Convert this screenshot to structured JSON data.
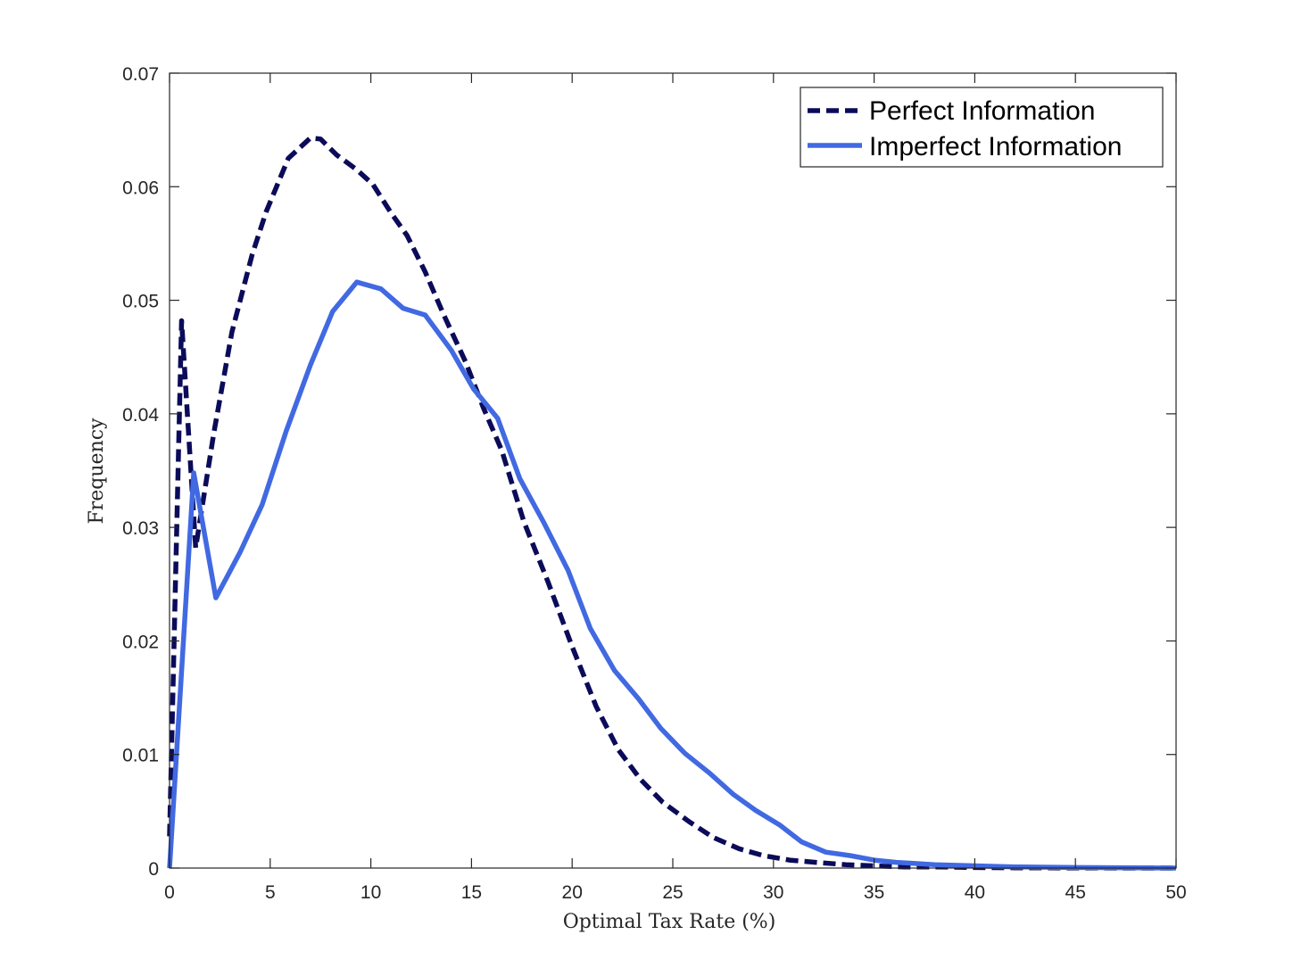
{
  "chart_data": {
    "type": "line",
    "xlabel": "Optimal Tax Rate (%)",
    "ylabel": "Frequency",
    "xlim": [
      0,
      50
    ],
    "ylim": [
      0,
      0.07
    ],
    "x_ticks": [
      0,
      5,
      10,
      15,
      20,
      25,
      30,
      35,
      40,
      45,
      50
    ],
    "x_tick_labels": [
      "0",
      "5",
      "10",
      "15",
      "20",
      "25",
      "30",
      "35",
      "40",
      "45",
      "50"
    ],
    "y_ticks": [
      0,
      0.01,
      0.02,
      0.03,
      0.04,
      0.05,
      0.06,
      0.07
    ],
    "y_tick_labels": [
      "0",
      "0.01",
      "0.02",
      "0.03",
      "0.04",
      "0.05",
      "0.06",
      "0.07"
    ],
    "grid": false,
    "legend_position": "top-right",
    "series": [
      {
        "name": "Perfect Information",
        "style": "dashed",
        "color": "#0B0B5A",
        "x": [
          0,
          0.6,
          1.3,
          2.2,
          3.1,
          4.1,
          4.8,
          5.9,
          7.0,
          7.5,
          8.3,
          9.3,
          10.1,
          11.0,
          11.8,
          12.7,
          13.6,
          14.7,
          15.6,
          16.5,
          17.6,
          18.8,
          20.0,
          21.2,
          22.3,
          23.4,
          24.5,
          25.8,
          27.0,
          28.3,
          29.5,
          30.8,
          32.1,
          33.6,
          35.0,
          36.5,
          38.0,
          40.0,
          42.0,
          45.0,
          50.0
        ],
        "y": [
          0.0028,
          0.0482,
          0.0282,
          0.0383,
          0.0472,
          0.054,
          0.0578,
          0.0625,
          0.0643,
          0.0642,
          0.0628,
          0.0615,
          0.0602,
          0.0577,
          0.0557,
          0.0525,
          0.0488,
          0.0446,
          0.0405,
          0.0368,
          0.0305,
          0.0252,
          0.0195,
          0.0142,
          0.0104,
          0.0078,
          0.0058,
          0.0041,
          0.0027,
          0.0017,
          0.0011,
          0.0007,
          0.0005,
          0.0003,
          0.0002,
          0.0001,
          0.0001,
          5e-05,
          2e-05,
          1e-05,
          0.0
        ],
        "legend_label": "Perfect Information"
      },
      {
        "name": "Imperfect Information",
        "style": "solid",
        "color": "#4169E1",
        "x": [
          0,
          1.2,
          2.3,
          3.5,
          4.6,
          5.8,
          7.0,
          8.1,
          9.3,
          10.5,
          11.6,
          12.7,
          14.0,
          15.1,
          16.3,
          17.4,
          18.6,
          19.8,
          20.9,
          22.1,
          23.3,
          24.4,
          25.6,
          26.8,
          28.0,
          29.1,
          30.3,
          31.4,
          32.6,
          33.8,
          35.0,
          36.1,
          38.0,
          40.0,
          42.0,
          45.0,
          50.0
        ],
        "y": [
          0.0,
          0.0348,
          0.0238,
          0.0278,
          0.032,
          0.0385,
          0.0443,
          0.049,
          0.0516,
          0.051,
          0.0493,
          0.0487,
          0.0456,
          0.0422,
          0.0396,
          0.0343,
          0.0304,
          0.0262,
          0.0211,
          0.0174,
          0.0149,
          0.0123,
          0.0101,
          0.0084,
          0.0065,
          0.0051,
          0.0038,
          0.0023,
          0.0014,
          0.0011,
          0.0007,
          0.0005,
          0.0003,
          0.0002,
          0.0001,
          5e-05,
          0.0
        ],
        "legend_label": "Imperfect Information"
      }
    ]
  }
}
